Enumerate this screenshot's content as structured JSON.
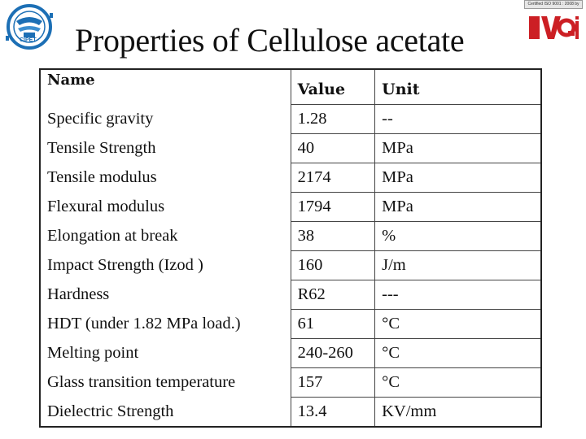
{
  "slide": {
    "title": "Properties of Cellulose acetate"
  },
  "logos": {
    "left_text": "CIPET",
    "right_cert_text": "Certified ISO 9001 : 2008 by",
    "right_mark_text": "BVQi",
    "right_accent_color": "#cc1f24",
    "left_accent_color": "#1c6fb5"
  },
  "table": {
    "headers": {
      "name": "Name",
      "value": "Value",
      "unit": "Unit"
    },
    "rows": [
      {
        "name": "Specific gravity",
        "value": "1.28",
        "unit": "--"
      },
      {
        "name": "Tensile Strength",
        "value": "40",
        "unit": "MPa"
      },
      {
        "name": "Tensile modulus",
        "value": "2174",
        "unit": "MPa"
      },
      {
        "name": "Flexural modulus",
        "value": "1794",
        "unit": "MPa"
      },
      {
        "name": "Elongation at break",
        "value": "38",
        "unit": "%"
      },
      {
        "name": "Impact Strength (Izod )",
        "value": "160",
        "unit": "J/m"
      },
      {
        "name": "Hardness",
        "value": "R62",
        "unit": "---"
      },
      {
        "name": "HDT (under 1.82 MPa load.)",
        "value": "61",
        "unit": "°C"
      },
      {
        "name": "Melting point",
        "value": "240-260",
        "unit": "°C"
      },
      {
        "name": "Glass transition temperature",
        "value": "157",
        "unit": "°C"
      },
      {
        "name": "Dielectric Strength",
        "value": "13.4",
        "unit": "KV/mm"
      }
    ]
  }
}
